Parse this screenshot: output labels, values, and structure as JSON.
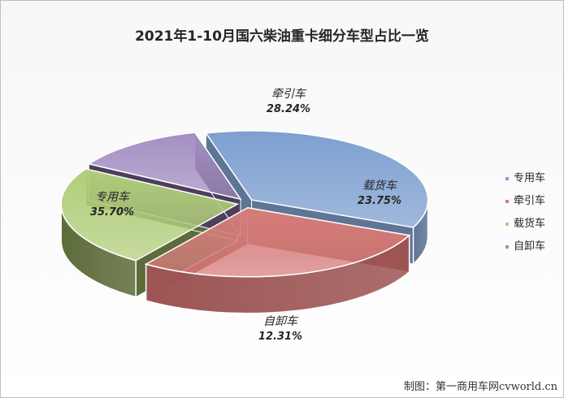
{
  "chart_data": {
    "type": "pie",
    "style": "3d-pie",
    "title": "2021年1-10月国六柴油重卡细分车型占比一览",
    "categories": [
      "专用车",
      "牵引车",
      "载货车",
      "自卸车"
    ],
    "values": [
      35.7,
      28.24,
      23.75,
      12.31
    ],
    "value_labels": [
      "35.70%",
      "28.24%",
      "23.75%",
      "12.31%"
    ],
    "unit": "%",
    "legend": {
      "position": "right",
      "entries": [
        "专用车",
        "牵引车",
        "载货车",
        "自卸车"
      ]
    },
    "colors": {
      "专用车": {
        "top": "#7d9fd0",
        "side": "#5e7596"
      },
      "牵引车": {
        "top": "#d67d7b",
        "side": "#9c5553"
      },
      "载货车": {
        "top": "#b1cd7a",
        "side": "#5d6c3a"
      },
      "自卸车": {
        "top": "#a38fc2",
        "side": "#4d405b"
      }
    }
  },
  "credit": "制图：第一商用车网cvworld.cn"
}
